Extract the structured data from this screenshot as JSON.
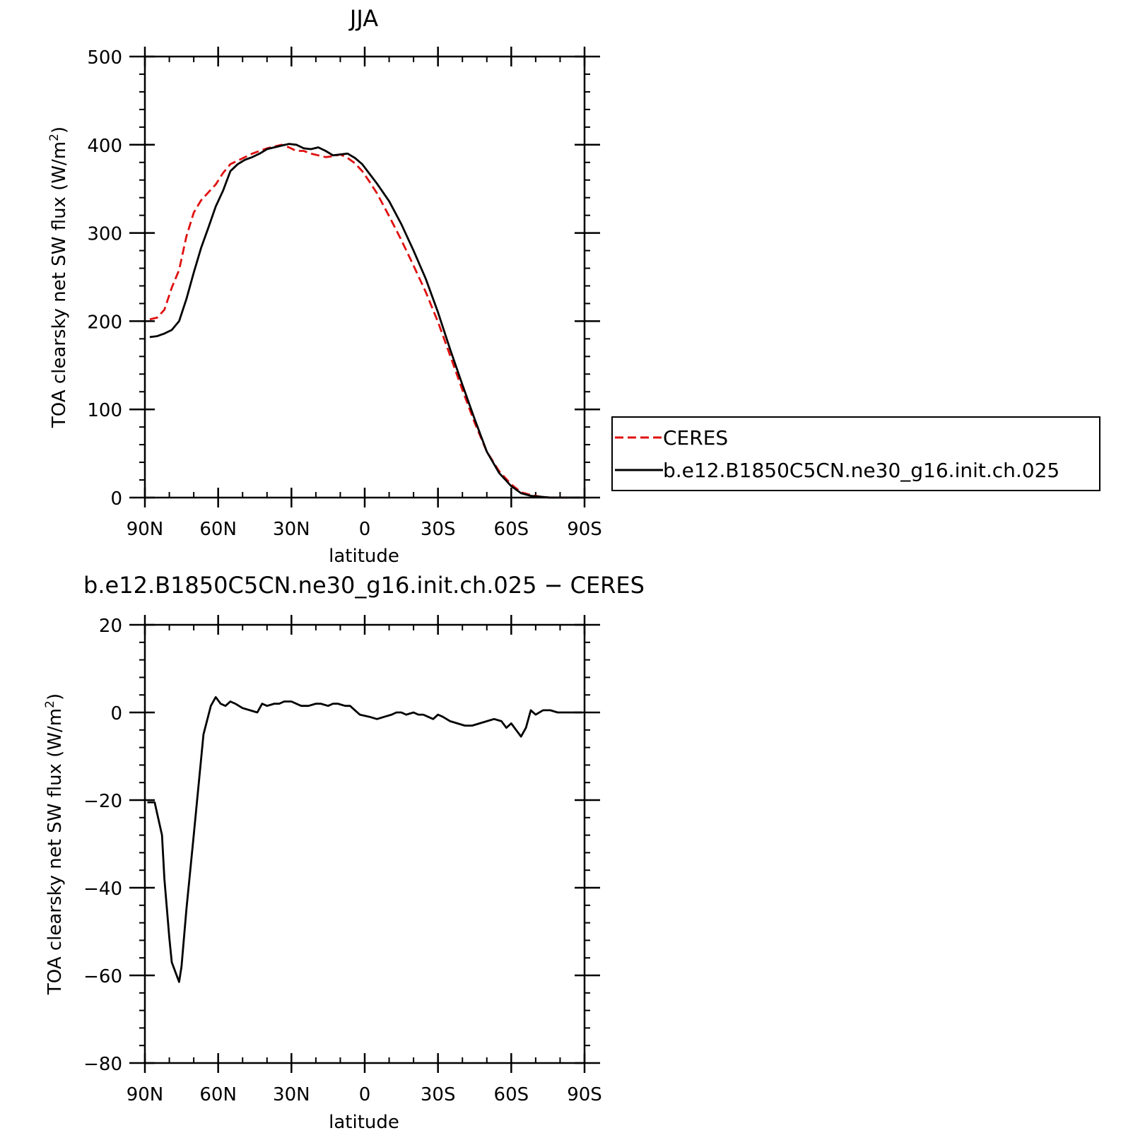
{
  "chart_data": [
    {
      "type": "line",
      "title": "JJA",
      "xlabel": "latitude",
      "ylabel_main": "TOA clearsky net SW flux (W/m",
      "ylabel_sup": "2",
      "ylabel_close": ")",
      "xlim": [
        90,
        -90
      ],
      "ylim": [
        0,
        500
      ],
      "x_ticks": [
        {
          "value": 90,
          "label": "90N"
        },
        {
          "value": 60,
          "label": "60N"
        },
        {
          "value": 30,
          "label": "30N"
        },
        {
          "value": 0,
          "label": "0"
        },
        {
          "value": -30,
          "label": "30S"
        },
        {
          "value": -60,
          "label": "60S"
        },
        {
          "value": -90,
          "label": "90S"
        }
      ],
      "y_ticks": [
        {
          "value": 0,
          "label": "0"
        },
        {
          "value": 100,
          "label": "100"
        },
        {
          "value": 200,
          "label": "200"
        },
        {
          "value": 300,
          "label": "300"
        },
        {
          "value": 400,
          "label": "400"
        },
        {
          "value": 500,
          "label": "500"
        }
      ],
      "legend": {
        "position": "right",
        "entries": [
          {
            "name": "CERES",
            "color": "#e01010",
            "dash": "dashed"
          },
          {
            "name": "b.e12.B1850C5CN.ne30_g16.init.ch.025",
            "color": "#000000",
            "dash": "solid"
          }
        ]
      },
      "series": [
        {
          "name": "CERES",
          "color": "#e01010",
          "dash": "dashed",
          "x": [
            88,
            85,
            82,
            79,
            76,
            73,
            70,
            67,
            64,
            61,
            58,
            55,
            52,
            49,
            46,
            43,
            40,
            37,
            34,
            31,
            28,
            25,
            22,
            19,
            16,
            13,
            10,
            7,
            4,
            1,
            -2,
            -5,
            -10,
            -15,
            -20,
            -25,
            -30,
            -35,
            -40,
            -45,
            -50,
            -55,
            -60,
            -64,
            -68,
            -72,
            -76,
            -80,
            -84,
            -88
          ],
          "y": [
            202,
            204,
            213,
            238,
            258,
            296,
            323,
            337,
            346,
            355,
            368,
            378,
            382,
            386,
            390,
            393,
            396,
            398,
            400,
            397,
            393,
            393,
            390,
            388,
            386,
            387,
            389,
            385,
            379,
            370,
            358,
            345,
            319,
            292,
            263,
            233,
            199,
            161,
            122,
            85,
            52,
            30,
            15,
            6,
            3,
            1,
            0,
            0,
            0,
            0
          ]
        },
        {
          "name": "b.e12.B1850C5CN.ne30_g16.init.ch.025",
          "color": "#000000",
          "dash": "solid",
          "x": [
            88,
            85,
            82,
            79,
            76,
            73,
            70,
            67,
            64,
            61,
            58,
            55,
            52,
            49,
            46,
            43,
            40,
            37,
            34,
            31,
            28,
            25,
            22,
            19,
            16,
            13,
            10,
            7,
            4,
            1,
            -2,
            -5,
            -10,
            -15,
            -20,
            -25,
            -30,
            -35,
            -40,
            -45,
            -50,
            -55,
            -60,
            -64,
            -68,
            -72,
            -76,
            -80,
            -84,
            -88
          ],
          "y": [
            182,
            183,
            186,
            190,
            200,
            225,
            255,
            283,
            306,
            330,
            348,
            370,
            378,
            383,
            386,
            390,
            395,
            397,
            399,
            401,
            400,
            396,
            395,
            397,
            393,
            388,
            389,
            390,
            385,
            378,
            367,
            356,
            336,
            310,
            280,
            248,
            210,
            168,
            128,
            89,
            52,
            28,
            13,
            5,
            2,
            1,
            0,
            0,
            0,
            0
          ]
        }
      ]
    },
    {
      "type": "line",
      "title": "b.e12.B1850C5CN.ne30_g16.init.ch.025 − CERES",
      "xlabel": "latitude",
      "ylabel_main": "TOA clearsky net SW flux (W/m",
      "ylabel_sup": "2",
      "ylabel_close": ")",
      "xlim": [
        90,
        -90
      ],
      "ylim": [
        -80,
        20
      ],
      "x_ticks": [
        {
          "value": 90,
          "label": "90N"
        },
        {
          "value": 60,
          "label": "60N"
        },
        {
          "value": 30,
          "label": "30N"
        },
        {
          "value": 0,
          "label": "0"
        },
        {
          "value": -30,
          "label": "30S"
        },
        {
          "value": -60,
          "label": "60S"
        },
        {
          "value": -90,
          "label": "90S"
        }
      ],
      "y_ticks": [
        {
          "value": -80,
          "label": "−80"
        },
        {
          "value": -60,
          "label": "−60"
        },
        {
          "value": -40,
          "label": "−40"
        },
        {
          "value": -20,
          "label": "−20"
        },
        {
          "value": 0,
          "label": "0"
        },
        {
          "value": 20,
          "label": "20"
        }
      ],
      "series": [
        {
          "name": "",
          "color": "#000000",
          "dash": "solid",
          "x": [
            89,
            86,
            83,
            82,
            80,
            79,
            76,
            75,
            73,
            70,
            66,
            63,
            61,
            59,
            57,
            55,
            53,
            50,
            47,
            44,
            42,
            40,
            37,
            35,
            33,
            30,
            28,
            26,
            23,
            20,
            18,
            15,
            13,
            11,
            8,
            6,
            4,
            2,
            -2,
            -5,
            -8,
            -11,
            -13,
            -15,
            -17,
            -20,
            -22,
            -24,
            -26,
            -28,
            -30,
            -32,
            -35,
            -38,
            -41,
            -44,
            -47,
            -50,
            -53,
            -56,
            -58,
            -60,
            -62,
            -64,
            -66,
            -68,
            -70,
            -73,
            -76,
            -79,
            -82,
            -86,
            -89
          ],
          "y": [
            -20.5,
            -20.5,
            -28,
            -38,
            -51.5,
            -57,
            -61.5,
            -58,
            -45,
            -28,
            -5,
            1.5,
            3.5,
            2,
            1.5,
            2.5,
            2,
            1,
            0.5,
            0,
            2,
            1.5,
            2,
            2,
            2.5,
            2.5,
            2,
            1.5,
            1.5,
            2,
            2,
            1.5,
            2,
            2,
            1.5,
            1.5,
            0.5,
            -0.5,
            -1,
            -1.5,
            -1,
            -0.5,
            0,
            0,
            -0.5,
            0,
            -0.5,
            -0.5,
            -1,
            -1.5,
            -0.5,
            -1,
            -2,
            -2.5,
            -3,
            -3,
            -2.5,
            -2,
            -1.5,
            -2,
            -3.5,
            -2.5,
            -4,
            -5.5,
            -3.5,
            0.5,
            -0.5,
            0.5,
            0.5,
            0,
            0,
            0,
            0
          ]
        }
      ]
    }
  ]
}
